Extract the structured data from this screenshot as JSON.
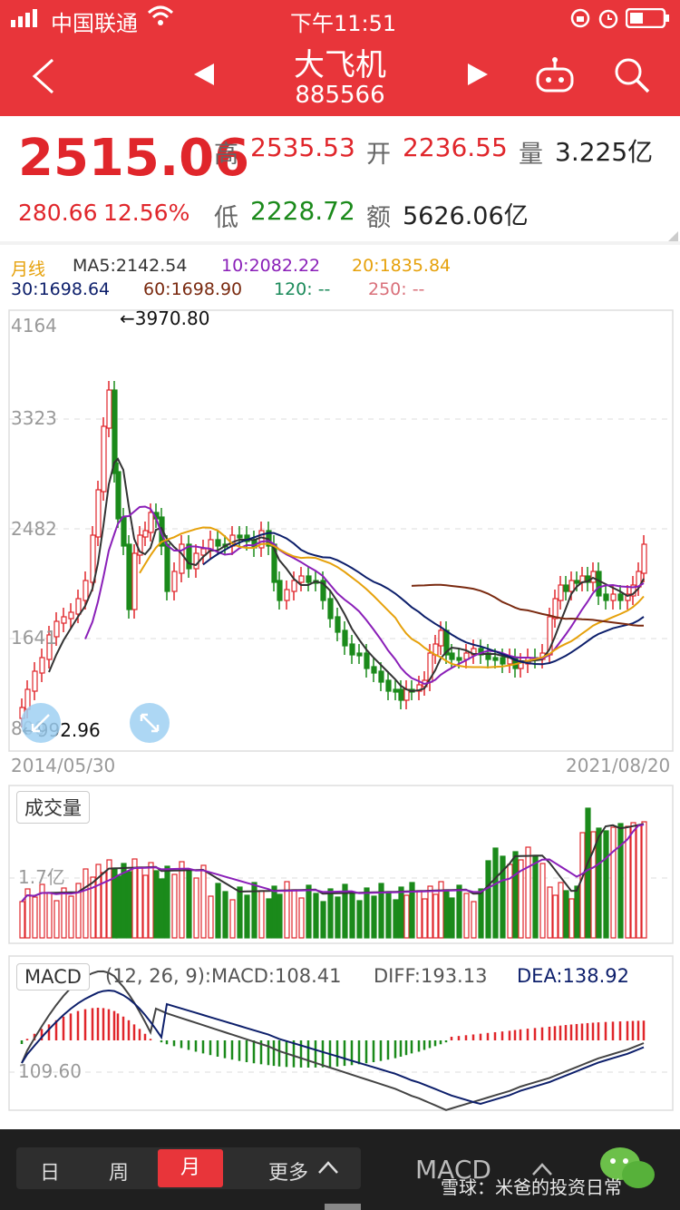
{
  "status_bar": {
    "carrier": "中国联通",
    "time": "下午11:51"
  },
  "header": {
    "title": "大飞机",
    "code": "885566"
  },
  "quote": {
    "price": "2515.06",
    "change": "280.66",
    "change_pct": "12.56%",
    "high_label": "高",
    "high": "2535.53",
    "open_label": "开",
    "open": "2236.55",
    "volume_label": "量",
    "volume": "3.225亿",
    "low_label": "低",
    "low": "2228.72",
    "amount_label": "额",
    "amount": "5626.06亿"
  },
  "ma_legend": {
    "period": "月线",
    "ma5": "MA5:2142.54",
    "ma10": "10:2082.22",
    "ma20": "20:1835.84",
    "ma30": "30:1698.64",
    "ma60": "60:1698.90",
    "ma120": "120: --",
    "ma250": "250: --"
  },
  "colors": {
    "up": "#e0262b",
    "down": "#1b8a1b",
    "ma5": "#333333",
    "ma10": "#8a1fb8",
    "ma20": "#e6a10b",
    "ma30": "#0d1f6b",
    "ma60": "#7a2a10",
    "ma120": "#1b8a5a",
    "ma250": "#d9707a",
    "header_bg": "#e8353a"
  },
  "price_chart": {
    "y_ticks": [
      "4164",
      "3323",
      "2482",
      "1641",
      "800"
    ],
    "max_label": "←3970.80",
    "min_label": "←992.96",
    "start_date": "2014/05/30",
    "end_date": "2021/08/20"
  },
  "volume_chart": {
    "title": "成交量",
    "tick": "1.7亿"
  },
  "macd_chart": {
    "title": "MACD",
    "params": "(12, 26, 9):MACD:108.41",
    "diff": "DIFF:193.13",
    "dea": "DEA:138.92",
    "tick": "109.60"
  },
  "bottom_bar": {
    "tabs": [
      "日",
      "周",
      "月",
      "更多"
    ],
    "active_tab": "月",
    "indicator": "MACD",
    "watermark": "雪球：米爸的投资日常"
  }
}
